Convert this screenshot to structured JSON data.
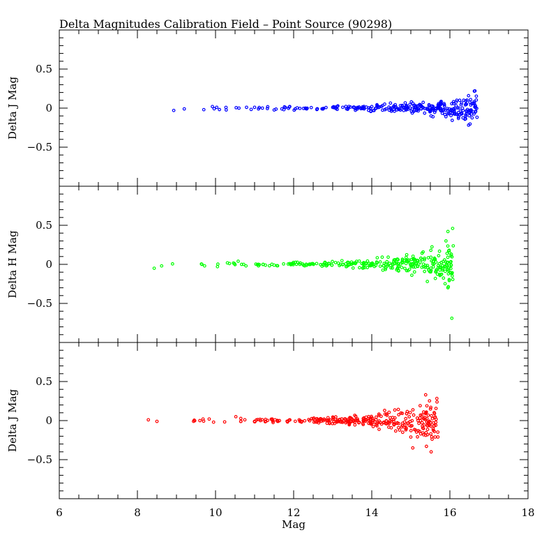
{
  "chart_data": {
    "type": "scatter",
    "title": "Delta Magnitudes Calibration Field – Point Source (90298)",
    "xlabel": "Mag",
    "xlim": [
      6,
      18
    ],
    "x_major_ticks": [
      6,
      8,
      10,
      12,
      14,
      16,
      18
    ],
    "x_tick_labels": [
      "6",
      "8",
      "10",
      "12",
      "14",
      "16",
      "18"
    ],
    "grid": false,
    "panels": [
      {
        "ylabel": "Delta J Mag",
        "ylim": [
          -1,
          1
        ],
        "y_tick_values": [
          0.5,
          0,
          -0.5
        ],
        "y_tick_labels": [
          "0.5",
          "0",
          "−0.5"
        ],
        "color": "#0000ff",
        "x_range": [
          8.9,
          16.7
        ],
        "spread_start": 0.02,
        "spread_end": 0.2,
        "anchors": [
          [
            8.93,
            -0.03
          ],
          [
            9.2,
            -0.01
          ],
          [
            9.7,
            -0.02
          ],
          [
            9.92,
            0.02
          ],
          [
            10.03,
            0.01
          ],
          [
            10.6,
            0.0
          ],
          [
            11.0,
            0.01
          ],
          [
            11.1,
            -0.01
          ],
          [
            11.2,
            0.0
          ],
          [
            11.75,
            -0.02
          ],
          [
            11.9,
            0.02
          ],
          [
            12.3,
            0.0
          ],
          [
            12.6,
            -0.01
          ],
          [
            13.0,
            0.01
          ],
          [
            13.4,
            0.0
          ]
        ],
        "n_random": 300
      },
      {
        "ylabel": "Delta H Mag",
        "ylim": [
          -1,
          1
        ],
        "y_tick_values": [
          0.5,
          0,
          -0.5
        ],
        "y_tick_labels": [
          "0.5",
          "0",
          "−0.5"
        ],
        "color": "#00ff00",
        "x_range": [
          8.4,
          16.1
        ],
        "spread_start": 0.02,
        "spread_end": 0.26,
        "anchors": [
          [
            8.43,
            -0.05
          ],
          [
            8.62,
            -0.02
          ],
          [
            9.65,
            0.0
          ],
          [
            9.72,
            -0.02
          ],
          [
            10.05,
            -0.03
          ],
          [
            10.58,
            0.04
          ],
          [
            10.72,
            0.0
          ],
          [
            10.78,
            -0.02
          ],
          [
            11.1,
            -0.02
          ],
          [
            11.22,
            0.0
          ],
          [
            11.5,
            -0.01
          ],
          [
            11.9,
            0.01
          ],
          [
            12.4,
            0.0
          ],
          [
            12.8,
            0.02
          ],
          [
            13.2,
            0.0
          ],
          [
            15.95,
            0.42
          ],
          [
            16.07,
            0.46
          ],
          [
            16.05,
            -0.69
          ],
          [
            15.9,
            0.3
          ],
          [
            15.95,
            -0.3
          ]
        ],
        "n_random": 300
      },
      {
        "ylabel": "Delta J Mag",
        "ylim": [
          -1,
          1
        ],
        "y_tick_values": [
          0.5,
          0,
          -0.5
        ],
        "y_tick_labels": [
          "0.5",
          "0",
          "−0.5"
        ],
        "color": "#ff0000",
        "x_range": [
          8.3,
          15.7
        ],
        "spread_start": 0.02,
        "spread_end": 0.28,
        "anchors": [
          [
            8.28,
            0.01
          ],
          [
            8.5,
            -0.01
          ],
          [
            9.6,
            0.0
          ],
          [
            9.68,
            0.02
          ],
          [
            9.95,
            -0.02
          ],
          [
            10.52,
            0.05
          ],
          [
            10.65,
            -0.01
          ],
          [
            10.75,
            0.01
          ],
          [
            11.0,
            -0.01
          ],
          [
            11.15,
            0.0
          ],
          [
            11.45,
            0.02
          ],
          [
            11.6,
            -0.01
          ],
          [
            11.9,
            0.01
          ],
          [
            12.2,
            -0.02
          ],
          [
            12.5,
            0.02
          ],
          [
            15.38,
            0.33
          ],
          [
            15.4,
            -0.33
          ],
          [
            15.52,
            -0.4
          ],
          [
            15.05,
            -0.35
          ]
        ],
        "n_random": 300
      }
    ]
  }
}
